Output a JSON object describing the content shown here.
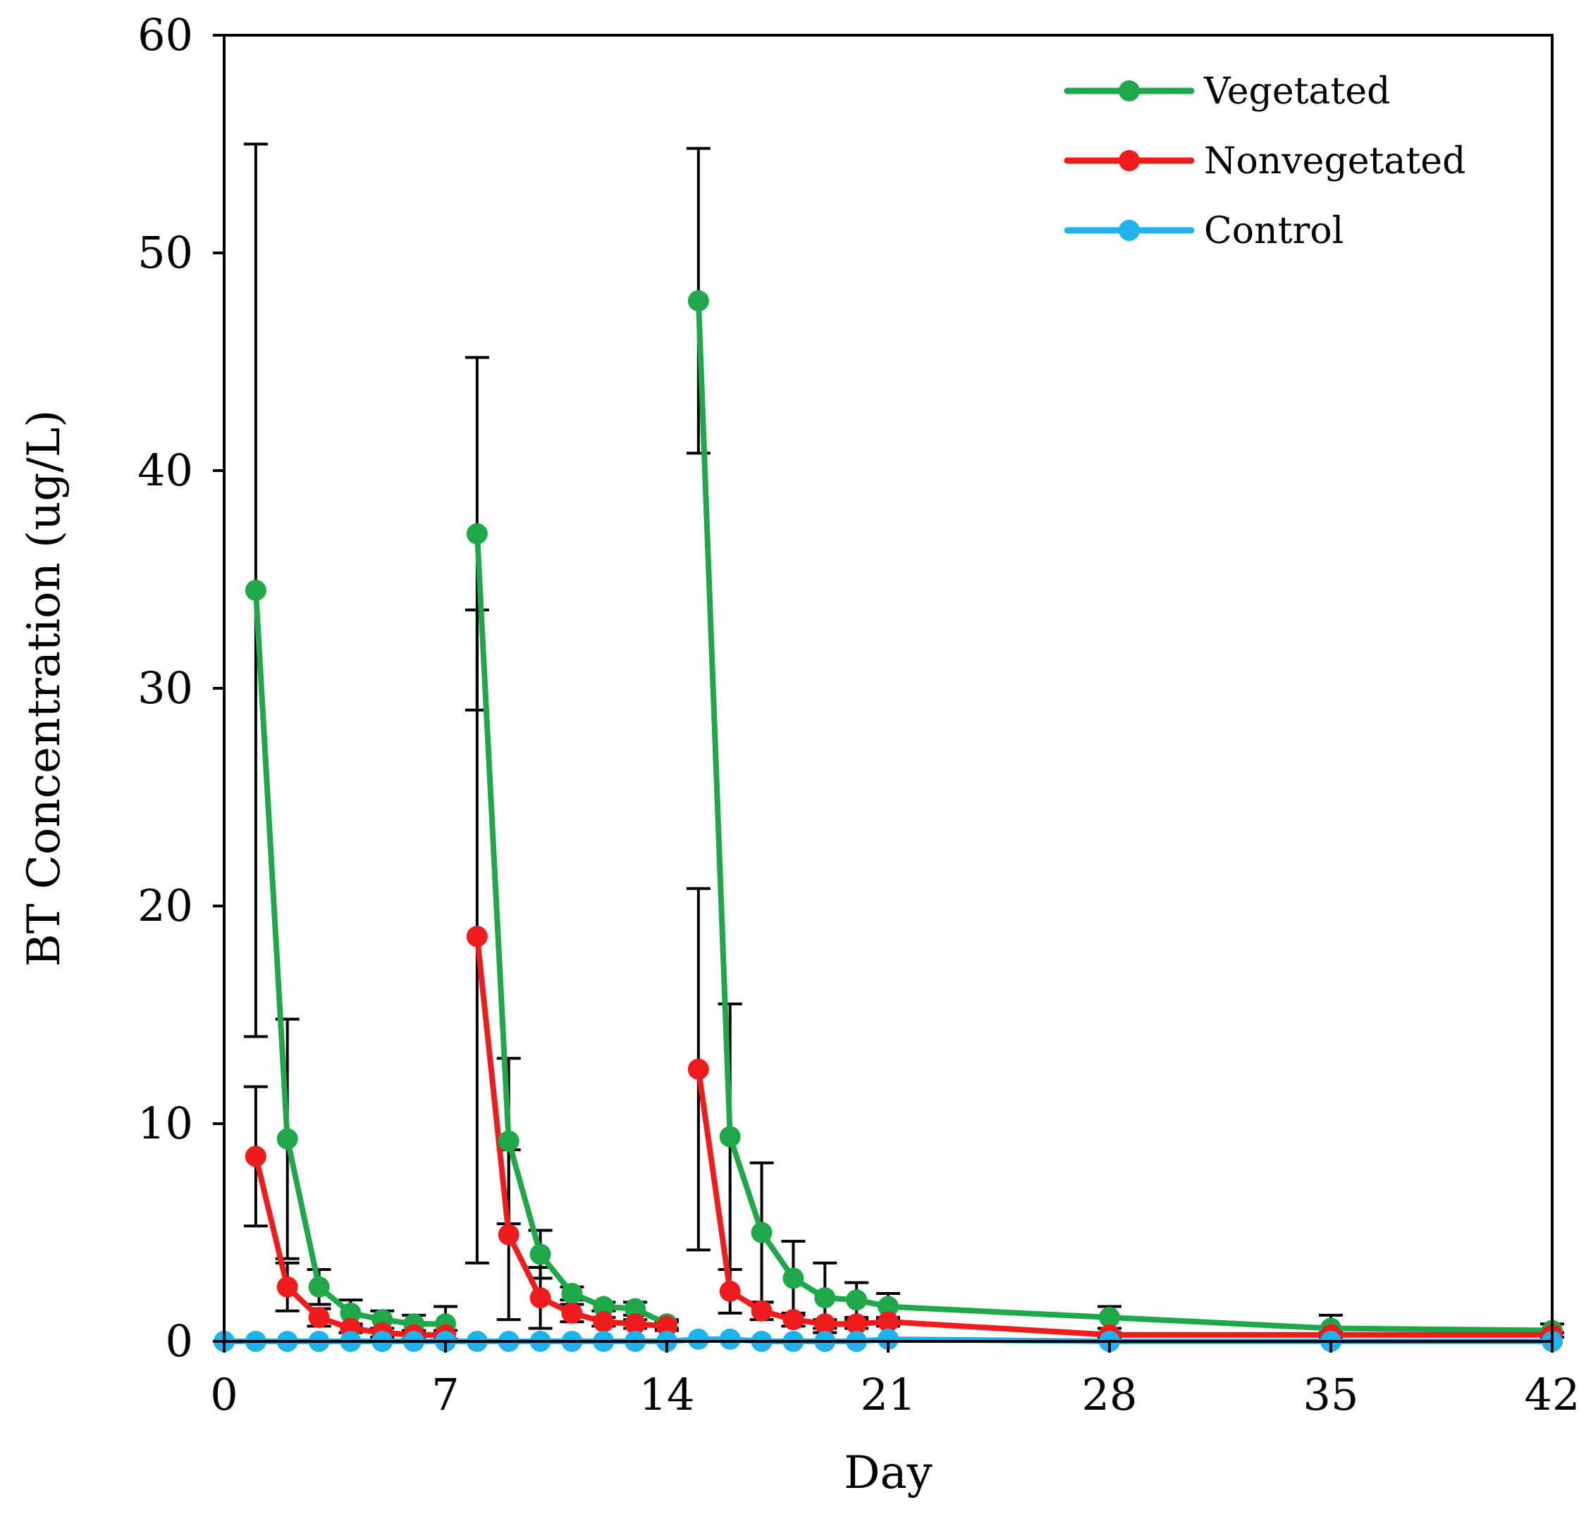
{
  "chart_data": {
    "type": "line",
    "title": "",
    "xlabel": "Day",
    "ylabel": "BT Concentration (ug/L)",
    "xlim": [
      0,
      42
    ],
    "ylim": [
      0,
      60
    ],
    "x_ticks": [
      0,
      7,
      14,
      21,
      28,
      35,
      42
    ],
    "y_ticks": [
      0,
      10,
      20,
      30,
      40,
      50,
      60
    ],
    "x_tick_labels": [
      "0",
      "7",
      "14",
      "21",
      "28",
      "35",
      "42"
    ],
    "y_tick_labels": [
      "0",
      "10",
      "20",
      "30",
      "40",
      "50",
      "60"
    ],
    "grid": false,
    "legend_position": "top-right",
    "series": [
      {
        "name": "Vegetated",
        "color": "#1fa84a",
        "segments": [
          {
            "x": [
              1,
              2,
              3,
              4,
              5,
              6,
              7
            ],
            "y": [
              34.5,
              9.3,
              2.5,
              1.3,
              1.0,
              0.8,
              0.8
            ],
            "err": [
              20.5,
              5.5,
              0.8,
              0.6,
              0.4,
              0.4,
              0.8
            ]
          },
          {
            "x": [
              8,
              9,
              10,
              11,
              12,
              13,
              14
            ],
            "y": [
              37.1,
              9.2,
              4.0,
              2.2,
              1.6,
              1.5,
              0.8
            ],
            "err": [
              8.1,
              3.8,
              1.1,
              0.3,
              0.2,
              0.3,
              0.2
            ]
          },
          {
            "x": [
              15,
              16,
              17,
              18,
              19,
              20,
              21,
              28,
              35,
              42
            ],
            "y": [
              47.8,
              9.4,
              5.0,
              2.9,
              2.0,
              1.9,
              1.6,
              1.1,
              0.6,
              0.5
            ],
            "err": [
              7.0,
              6.1,
              3.2,
              1.7,
              1.6,
              0.8,
              0.6,
              0.5,
              0.6,
              0.3
            ]
          }
        ]
      },
      {
        "name": "Nonvegetated",
        "color": "#ee1c1c",
        "segments": [
          {
            "x": [
              1,
              2,
              3,
              4,
              5,
              6,
              7
            ],
            "y": [
              8.5,
              2.5,
              1.1,
              0.6,
              0.4,
              0.3,
              0.3
            ],
            "err": [
              3.2,
              1.1,
              0.4,
              0.2,
              0.2,
              0.2,
              0.2
            ]
          },
          {
            "x": [
              8,
              9,
              10,
              11,
              12,
              13,
              14
            ],
            "y": [
              18.6,
              4.9,
              2.0,
              1.3,
              0.9,
              0.8,
              0.7
            ],
            "err": [
              15.0,
              3.9,
              1.4,
              0.4,
              0.2,
              0.2,
              0.2
            ]
          },
          {
            "x": [
              15,
              16,
              17,
              18,
              19,
              20,
              21,
              28,
              35,
              42
            ],
            "y": [
              12.5,
              2.3,
              1.4,
              1.0,
              0.8,
              0.8,
              0.9,
              0.3,
              0.3,
              0.3
            ],
            "err": [
              8.3,
              1.0,
              0.4,
              0.3,
              0.2,
              0.2,
              0.2,
              0.1,
              0.1,
              0.1
            ]
          }
        ]
      },
      {
        "name": "Control",
        "color": "#1fb2ec",
        "segments": [
          {
            "x": [
              0,
              1,
              2,
              3,
              4,
              5,
              6,
              7,
              8,
              9,
              10,
              11,
              12,
              13,
              14,
              15,
              16,
              17,
              18,
              19,
              20,
              21,
              28,
              35,
              42
            ],
            "y": [
              0,
              0,
              0,
              0,
              0,
              0,
              0,
              0,
              0,
              0,
              0,
              0,
              0,
              0,
              0,
              0.1,
              0.1,
              0,
              0,
              0,
              0,
              0.1,
              0,
              0,
              0
            ],
            "err": []
          }
        ]
      }
    ]
  }
}
